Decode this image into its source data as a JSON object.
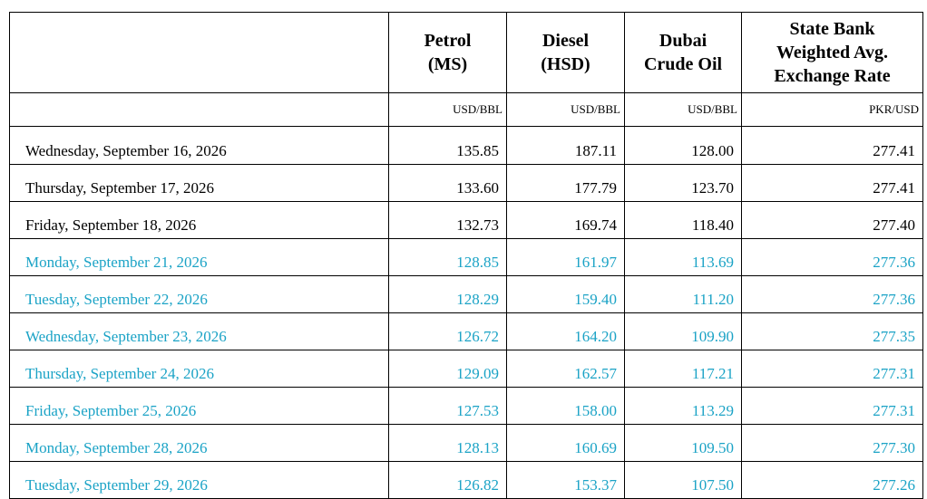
{
  "colors": {
    "text": "#000000",
    "highlight": "#1ba3c6",
    "border": "#000000"
  },
  "header": {
    "date_col": "",
    "petrol": [
      "Petrol",
      "(MS)"
    ],
    "diesel": [
      "Diesel",
      "(HSD)"
    ],
    "dubai": [
      "Dubai",
      "Crude Oil"
    ],
    "rate": [
      "State Bank",
      "Weighted Avg.",
      "Exchange Rate"
    ]
  },
  "units": {
    "date_col": "",
    "petrol": "USD/BBL",
    "diesel": "USD/BBL",
    "dubai": "USD/BBL",
    "rate": "PKR/USD"
  },
  "rows": [
    {
      "date": "Wednesday, September 16, 2026",
      "petrol": "135.85",
      "diesel": "187.11",
      "dubai": "128.00",
      "rate": "277.41",
      "highlight": false
    },
    {
      "date": "Thursday, September 17, 2026",
      "petrol": "133.60",
      "diesel": "177.79",
      "dubai": "123.70",
      "rate": "277.41",
      "highlight": false
    },
    {
      "date": "Friday, September 18, 2026",
      "petrol": "132.73",
      "diesel": "169.74",
      "dubai": "118.40",
      "rate": "277.40",
      "highlight": false
    },
    {
      "date": "Monday, September 21, 2026",
      "petrol": "128.85",
      "diesel": "161.97",
      "dubai": "113.69",
      "rate": "277.36",
      "highlight": true
    },
    {
      "date": "Tuesday, September 22, 2026",
      "petrol": "128.29",
      "diesel": "159.40",
      "dubai": "111.20",
      "rate": "277.36",
      "highlight": true
    },
    {
      "date": "Wednesday, September 23, 2026",
      "petrol": "126.72",
      "diesel": "164.20",
      "dubai": "109.90",
      "rate": "277.35",
      "highlight": true
    },
    {
      "date": "Thursday, September 24, 2026",
      "petrol": "129.09",
      "diesel": "162.57",
      "dubai": "117.21",
      "rate": "277.31",
      "highlight": true
    },
    {
      "date": "Friday, September 25, 2026",
      "petrol": "127.53",
      "diesel": "158.00",
      "dubai": "113.29",
      "rate": "277.31",
      "highlight": true
    },
    {
      "date": "Monday, September 28, 2026",
      "petrol": "128.13",
      "diesel": "160.69",
      "dubai": "109.50",
      "rate": "277.30",
      "highlight": true
    },
    {
      "date": "Tuesday, September 29, 2026",
      "petrol": "126.82",
      "diesel": "153.37",
      "dubai": "107.50",
      "rate": "277.26",
      "highlight": true
    }
  ]
}
